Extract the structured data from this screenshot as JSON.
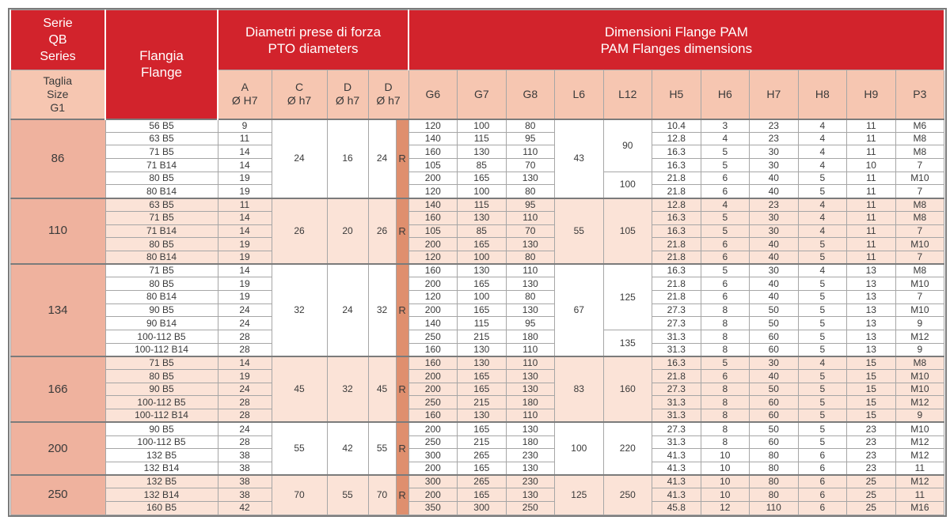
{
  "header": {
    "series": [
      "Serie",
      "QB",
      "Series"
    ],
    "size": [
      "Taglia",
      "Size",
      "G1"
    ],
    "flange": [
      "Flangia",
      "Flange"
    ],
    "pto_title": [
      "Diametri prese di forza",
      "PTO diameters"
    ],
    "pam_title": [
      "Dimensioni Flange PAM",
      "PAM Flanges dimensions"
    ],
    "pto_cols": [
      {
        "letter": "A",
        "fit": "Ø H7"
      },
      {
        "letter": "C",
        "fit": "Ø h7"
      },
      {
        "letter": "D",
        "fit": "Ø h7"
      },
      {
        "letter": "D",
        "fit": "Ø h7"
      }
    ],
    "pam_cols": [
      "G6",
      "G7",
      "G8",
      "L6",
      "L12",
      "H5",
      "H6",
      "H7",
      "H8",
      "H9",
      "P3"
    ]
  },
  "row_value_order": [
    "flange",
    "A",
    "G6",
    "G7",
    "G8",
    "H5",
    "H6",
    "H7",
    "H8",
    "H9",
    "P3"
  ],
  "colors": {
    "header_red": "#d2232c",
    "subheader_pink": "#f6c6b1",
    "size_column_salmon": "#efb29e",
    "body_pink": "#fbe3d7",
    "r_column_salmon": "#df8f6e",
    "border_light": "#a6a6a6",
    "border_dark": "#7b7b7b",
    "text": "#3a3a3a"
  },
  "groups": [
    {
      "size": "86",
      "C": "24",
      "D1": "16",
      "D2": "24",
      "R": "R",
      "L6": "43",
      "L12": [
        {
          "v": "90",
          "span": 4
        },
        {
          "v": "100",
          "span": 2
        }
      ],
      "rows": [
        [
          "56 B5",
          "9",
          "120",
          "100",
          "80",
          "10.4",
          "3",
          "23",
          "4",
          "11",
          "M6"
        ],
        [
          "63 B5",
          "11",
          "140",
          "115",
          "95",
          "12.8",
          "4",
          "23",
          "4",
          "11",
          "M8"
        ],
        [
          "71 B5",
          "14",
          "160",
          "130",
          "110",
          "16.3",
          "5",
          "30",
          "4",
          "11",
          "M8"
        ],
        [
          "71 B14",
          "14",
          "105",
          "85",
          "70",
          "16.3",
          "5",
          "30",
          "4",
          "10",
          "7"
        ],
        [
          "80 B5",
          "19",
          "200",
          "165",
          "130",
          "21.8",
          "6",
          "40",
          "5",
          "11",
          "M10"
        ],
        [
          "80 B14",
          "19",
          "120",
          "100",
          "80",
          "21.8",
          "6",
          "40",
          "5",
          "11",
          "7"
        ]
      ]
    },
    {
      "size": "110",
      "C": "26",
      "D1": "20",
      "D2": "26",
      "R": "R",
      "L6": "55",
      "L12": [
        {
          "v": "105",
          "span": 5
        }
      ],
      "rows": [
        [
          "63 B5",
          "11",
          "140",
          "115",
          "95",
          "12.8",
          "4",
          "23",
          "4",
          "11",
          "M8"
        ],
        [
          "71 B5",
          "14",
          "160",
          "130",
          "110",
          "16.3",
          "5",
          "30",
          "4",
          "11",
          "M8"
        ],
        [
          "71 B14",
          "14",
          "105",
          "85",
          "70",
          "16.3",
          "5",
          "30",
          "4",
          "11",
          "7"
        ],
        [
          "80 B5",
          "19",
          "200",
          "165",
          "130",
          "21.8",
          "6",
          "40",
          "5",
          "11",
          "M10"
        ],
        [
          "80 B14",
          "19",
          "120",
          "100",
          "80",
          "21.8",
          "6",
          "40",
          "5",
          "11",
          "7"
        ]
      ]
    },
    {
      "size": "134",
      "C": "32",
      "D1": "24",
      "D2": "32",
      "R": "R",
      "L6": "67",
      "L12": [
        {
          "v": "125",
          "span": 5
        },
        {
          "v": "135",
          "span": 2
        }
      ],
      "rows": [
        [
          "71 B5",
          "14",
          "160",
          "130",
          "110",
          "16.3",
          "5",
          "30",
          "4",
          "13",
          "M8"
        ],
        [
          "80 B5",
          "19",
          "200",
          "165",
          "130",
          "21.8",
          "6",
          "40",
          "5",
          "13",
          "M10"
        ],
        [
          "80 B14",
          "19",
          "120",
          "100",
          "80",
          "21.8",
          "6",
          "40",
          "5",
          "13",
          "7"
        ],
        [
          "90 B5",
          "24",
          "200",
          "165",
          "130",
          "27.3",
          "8",
          "50",
          "5",
          "13",
          "M10"
        ],
        [
          "90 B14",
          "24",
          "140",
          "115",
          "95",
          "27.3",
          "8",
          "50",
          "5",
          "13",
          "9"
        ],
        [
          "100-112 B5",
          "28",
          "250",
          "215",
          "180",
          "31.3",
          "8",
          "60",
          "5",
          "13",
          "M12"
        ],
        [
          "100-112 B14",
          "28",
          "160",
          "130",
          "110",
          "31.3",
          "8",
          "60",
          "5",
          "13",
          "9"
        ]
      ]
    },
    {
      "size": "166",
      "C": "45",
      "D1": "32",
      "D2": "45",
      "R": "R",
      "L6": "83",
      "L12": [
        {
          "v": "160",
          "span": 5
        }
      ],
      "rows": [
        [
          "71 B5",
          "14",
          "160",
          "130",
          "110",
          "16.3",
          "5",
          "30",
          "4",
          "15",
          "M8"
        ],
        [
          "80 B5",
          "19",
          "200",
          "165",
          "130",
          "21.8",
          "6",
          "40",
          "5",
          "15",
          "M10"
        ],
        [
          "90 B5",
          "24",
          "200",
          "165",
          "130",
          "27.3",
          "8",
          "50",
          "5",
          "15",
          "M10"
        ],
        [
          "100-112 B5",
          "28",
          "250",
          "215",
          "180",
          "31.3",
          "8",
          "60",
          "5",
          "15",
          "M12"
        ],
        [
          "100-112 B14",
          "28",
          "160",
          "130",
          "110",
          "31.3",
          "8",
          "60",
          "5",
          "15",
          "9"
        ]
      ]
    },
    {
      "size": "200",
      "C": "55",
      "D1": "42",
      "D2": "55",
      "R": "R",
      "L6": "100",
      "L12": [
        {
          "v": "220",
          "span": 4
        }
      ],
      "rows": [
        [
          "90 B5",
          "24",
          "200",
          "165",
          "130",
          "27.3",
          "8",
          "50",
          "5",
          "23",
          "M10"
        ],
        [
          "100-112 B5",
          "28",
          "250",
          "215",
          "180",
          "31.3",
          "8",
          "60",
          "5",
          "23",
          "M12"
        ],
        [
          "132 B5",
          "38",
          "300",
          "265",
          "230",
          "41.3",
          "10",
          "80",
          "6",
          "23",
          "M12"
        ],
        [
          "132 B14",
          "38",
          "200",
          "165",
          "130",
          "41.3",
          "10",
          "80",
          "6",
          "23",
          "11"
        ]
      ]
    },
    {
      "size": "250",
      "C": "70",
      "D1": "55",
      "D2": "70",
      "R": "R",
      "L6": "125",
      "L12": [
        {
          "v": "250",
          "span": 3
        }
      ],
      "rows": [
        [
          "132 B5",
          "38",
          "300",
          "265",
          "230",
          "41.3",
          "10",
          "80",
          "6",
          "25",
          "M12"
        ],
        [
          "132 B14",
          "38",
          "200",
          "165",
          "130",
          "41.3",
          "10",
          "80",
          "6",
          "25",
          "11"
        ],
        [
          "160 B5",
          "42",
          "350",
          "300",
          "250",
          "45.8",
          "12",
          "110",
          "6",
          "25",
          "M16"
        ]
      ]
    }
  ]
}
